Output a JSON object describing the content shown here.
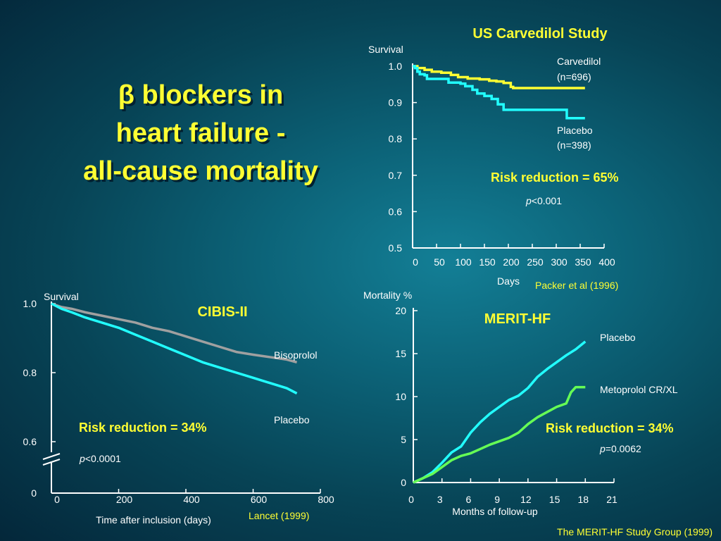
{
  "slide": {
    "title_lines": [
      "β blockers in",
      "heart failure -",
      "all-cause mortality"
    ]
  },
  "colors": {
    "yellow_text": "#ffff33",
    "carvedilol": "#ffff33",
    "placebo_cyan": "#22ffff",
    "bisoprolol": "#a0a0a0",
    "metoprolol": "#66ff55",
    "axis": "#ffffff",
    "source": "#ffff33"
  },
  "chart_data": [
    {
      "id": "us",
      "type": "line",
      "title": "US Carvedilol Study",
      "ylabel": "Survival",
      "xlabel": "Days",
      "x_ticks": [
        "0",
        "50",
        "100",
        "150",
        "200",
        "250",
        "300",
        "350",
        "400"
      ],
      "y_ticks": [
        "0.5",
        "0.6",
        "0.7",
        "0.8",
        "0.9",
        "1.0"
      ],
      "xlim": [
        0,
        400
      ],
      "ylim": [
        0.5,
        1.0
      ],
      "series": [
        {
          "name": "Carvedilol",
          "sub": "(n=696)",
          "color": "#ffff33",
          "points": [
            [
              0,
              1.0
            ],
            [
              10,
              0.995
            ],
            [
              25,
              0.99
            ],
            [
              40,
              0.985
            ],
            [
              60,
              0.982
            ],
            [
              80,
              0.976
            ],
            [
              95,
              0.97
            ],
            [
              115,
              0.966
            ],
            [
              140,
              0.964
            ],
            [
              160,
              0.96
            ],
            [
              175,
              0.958
            ],
            [
              190,
              0.954
            ],
            [
              205,
              0.943
            ],
            [
              210,
              0.94
            ],
            [
              260,
              0.94
            ],
            [
              330,
              0.94
            ],
            [
              360,
              0.94
            ]
          ]
        },
        {
          "name": "Placebo",
          "sub": "(n=398)",
          "color": "#22ffff",
          "points": [
            [
              0,
              1.0
            ],
            [
              5,
              0.995
            ],
            [
              10,
              0.985
            ],
            [
              15,
              0.978
            ],
            [
              25,
              0.975
            ],
            [
              30,
              0.965
            ],
            [
              60,
              0.965
            ],
            [
              75,
              0.955
            ],
            [
              100,
              0.952
            ],
            [
              110,
              0.945
            ],
            [
              125,
              0.935
            ],
            [
              135,
              0.925
            ],
            [
              150,
              0.918
            ],
            [
              165,
              0.91
            ],
            [
              178,
              0.895
            ],
            [
              190,
              0.88
            ],
            [
              260,
              0.88
            ],
            [
              290,
              0.88
            ],
            [
              320,
              0.88
            ],
            [
              322,
              0.857
            ],
            [
              340,
              0.857
            ],
            [
              360,
              0.857
            ]
          ]
        }
      ],
      "annotations": {
        "risk": "Risk reduction = 65%",
        "p_italic": "p",
        "p_rest": "<0.001",
        "source": "Packer et al (1996)"
      }
    },
    {
      "id": "cibis",
      "type": "line",
      "title": "CIBIS-II",
      "ylabel": "Survival",
      "xlabel": "Time after inclusion (days)",
      "x_ticks": [
        "0",
        "200",
        "400",
        "600",
        "800"
      ],
      "y_ticks": [
        "0",
        "0.6",
        "0.8",
        "1.0"
      ],
      "xlim": [
        0,
        800
      ],
      "ylim": [
        0.6,
        1.0
      ],
      "axis_break": true,
      "series": [
        {
          "name": "Bisoprolol",
          "color": "#a0a0a0",
          "points": [
            [
              0,
              1.0
            ],
            [
              30,
              0.99
            ],
            [
              60,
              0.985
            ],
            [
              100,
              0.975
            ],
            [
              150,
              0.965
            ],
            [
              200,
              0.955
            ],
            [
              250,
              0.945
            ],
            [
              300,
              0.93
            ],
            [
              350,
              0.92
            ],
            [
              400,
              0.905
            ],
            [
              450,
              0.89
            ],
            [
              500,
              0.875
            ],
            [
              550,
              0.86
            ],
            [
              600,
              0.852
            ],
            [
              650,
              0.845
            ],
            [
              700,
              0.838
            ],
            [
              730,
              0.83
            ]
          ]
        },
        {
          "name": "Placebo",
          "color": "#22ffff",
          "points": [
            [
              0,
              1.0
            ],
            [
              30,
              0.985
            ],
            [
              60,
              0.975
            ],
            [
              100,
              0.96
            ],
            [
              150,
              0.945
            ],
            [
              200,
              0.93
            ],
            [
              250,
              0.91
            ],
            [
              300,
              0.89
            ],
            [
              350,
              0.87
            ],
            [
              400,
              0.85
            ],
            [
              450,
              0.83
            ],
            [
              500,
              0.815
            ],
            [
              550,
              0.8
            ],
            [
              600,
              0.785
            ],
            [
              650,
              0.77
            ],
            [
              700,
              0.755
            ],
            [
              730,
              0.74
            ]
          ]
        }
      ],
      "annotations": {
        "risk": "Risk reduction = 34%",
        "p_italic": "p",
        "p_rest": "<0.0001",
        "source": "Lancet (1999)"
      }
    },
    {
      "id": "merit",
      "type": "line",
      "title": "MERIT-HF",
      "ylabel": "Mortality %",
      "xlabel": "Months of follow-up",
      "x_ticks": [
        "0",
        "3",
        "6",
        "9",
        "12",
        "15",
        "18",
        "21"
      ],
      "y_ticks": [
        "0",
        "5",
        "10",
        "15",
        "20"
      ],
      "xlim": [
        0,
        21
      ],
      "ylim": [
        0,
        20
      ],
      "series": [
        {
          "name": "Placebo",
          "color": "#22ffff",
          "points": [
            [
              0,
              0
            ],
            [
              1,
              0.5
            ],
            [
              2,
              1.2
            ],
            [
              3,
              2.3
            ],
            [
              4,
              3.5
            ],
            [
              5,
              4.2
            ],
            [
              6,
              5.8
            ],
            [
              7,
              7.0
            ],
            [
              8,
              8.0
            ],
            [
              9,
              8.8
            ],
            [
              10,
              9.6
            ],
            [
              11,
              10.1
            ],
            [
              12,
              11.0
            ],
            [
              13,
              12.3
            ],
            [
              14,
              13.2
            ],
            [
              15,
              14.0
            ],
            [
              16,
              14.8
            ],
            [
              17,
              15.5
            ],
            [
              18,
              16.4
            ]
          ]
        },
        {
          "name": "Metoprolol CR/XL",
          "color": "#66ff55",
          "points": [
            [
              0,
              0
            ],
            [
              1,
              0.5
            ],
            [
              2,
              1.0
            ],
            [
              3,
              1.8
            ],
            [
              4,
              2.6
            ],
            [
              5,
              3.1
            ],
            [
              6,
              3.4
            ],
            [
              7,
              3.9
            ],
            [
              8,
              4.4
            ],
            [
              9,
              4.8
            ],
            [
              10,
              5.2
            ],
            [
              11,
              5.8
            ],
            [
              12,
              6.8
            ],
            [
              13,
              7.6
            ],
            [
              14,
              8.2
            ],
            [
              15,
              8.8
            ],
            [
              16,
              9.2
            ],
            [
              16.5,
              10.5
            ],
            [
              17,
              11.1
            ],
            [
              18,
              11.1
            ]
          ]
        }
      ],
      "annotations": {
        "risk": "Risk reduction = 34%",
        "p_italic": "p",
        "p_rest": "=0.0062",
        "source": "The MERIT-HF Study Group (1999)"
      }
    }
  ]
}
